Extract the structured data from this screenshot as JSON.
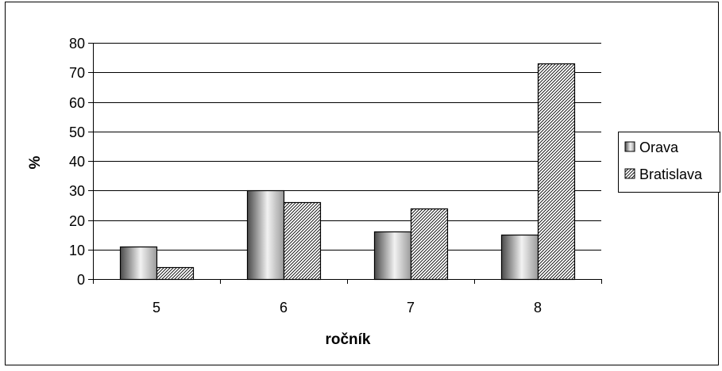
{
  "chart_data": {
    "type": "bar",
    "categories": [
      "5",
      "6",
      "7",
      "8"
    ],
    "series": [
      {
        "name": "Orava",
        "values": [
          11,
          30,
          16,
          15
        ]
      },
      {
        "name": "Bratislava",
        "values": [
          4,
          26,
          24,
          73
        ]
      }
    ],
    "xlabel": "ročník",
    "ylabel": "%",
    "ylim": [
      0,
      80
    ],
    "yticks": [
      0,
      10,
      20,
      30,
      40,
      50,
      60,
      70,
      80
    ],
    "grid": true,
    "legend": "right"
  }
}
